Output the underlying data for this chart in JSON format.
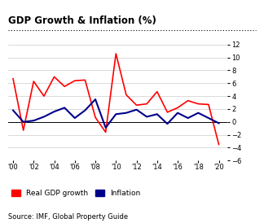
{
  "title": "GDP Growth & Inflation (%)",
  "source": "Source: IMF, Global Property Guide",
  "years": [
    2000,
    2001,
    2002,
    2003,
    2004,
    2005,
    2006,
    2007,
    2008,
    2009,
    2010,
    2011,
    2012,
    2013,
    2014,
    2015,
    2016,
    2017,
    2018,
    2019,
    2020
  ],
  "gdp_growth": [
    6.7,
    -1.3,
    6.3,
    4.0,
    7.0,
    5.5,
    6.4,
    6.5,
    0.7,
    -1.6,
    10.6,
    4.2,
    2.6,
    2.8,
    4.7,
    1.5,
    2.2,
    3.3,
    2.8,
    2.7,
    -3.5
  ],
  "inflation": [
    1.8,
    0.0,
    0.2,
    0.8,
    1.6,
    2.2,
    0.6,
    1.8,
    3.5,
    -0.9,
    1.2,
    1.4,
    1.9,
    0.8,
    1.2,
    -0.3,
    1.4,
    0.6,
    1.4,
    0.6,
    -0.2
  ],
  "gdp_color": "#FF0000",
  "inflation_color": "#00008B",
  "ylim": [
    -6,
    12
  ],
  "yticks": [
    -6,
    -4,
    -2,
    0,
    2,
    4,
    6,
    8,
    10,
    12
  ],
  "xtick_labels": [
    "'00",
    "'02",
    "'04",
    "'06",
    "'08",
    "'10",
    "'12",
    "'14",
    "'16",
    "'18",
    "'20"
  ],
  "xtick_positions": [
    2000,
    2002,
    2004,
    2006,
    2008,
    2010,
    2012,
    2014,
    2016,
    2018,
    2020
  ],
  "background_color": "#FFFFFF",
  "grid_color": "#CCCCCC"
}
